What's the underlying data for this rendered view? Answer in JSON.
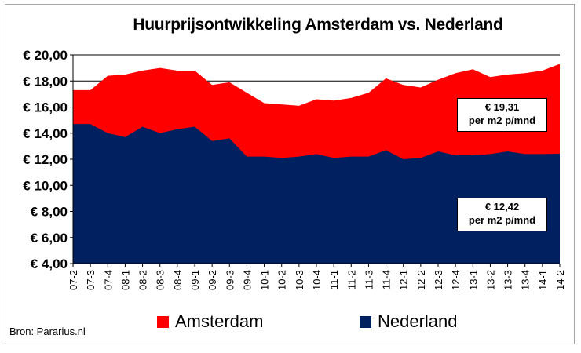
{
  "chart_data": {
    "type": "area",
    "title": "Huurprijsontwikkeling Amsterdam vs. Nederland",
    "x": [
      "07-2",
      "07-3",
      "07-4",
      "08-1",
      "08-2",
      "08-3",
      "08-4",
      "09-1",
      "09-2",
      "09-3",
      "09-4",
      "10-1",
      "10-2",
      "10-3",
      "10-4",
      "11-1",
      "11-2",
      "11-3",
      "11-4",
      "12-1",
      "12-2",
      "12-3",
      "12-4",
      "13-1",
      "13-2",
      "13-3",
      "13-4",
      "14-1",
      "14-2"
    ],
    "series": [
      {
        "name": "Amsterdam",
        "color": "#ff0000",
        "values": [
          17.3,
          17.3,
          18.4,
          18.5,
          18.8,
          19.0,
          18.8,
          18.8,
          17.7,
          17.9,
          17.1,
          16.3,
          16.2,
          16.1,
          16.6,
          16.5,
          16.7,
          17.1,
          18.2,
          17.7,
          17.5,
          18.1,
          18.6,
          18.9,
          18.3,
          18.5,
          18.6,
          18.8,
          19.31
        ]
      },
      {
        "name": "Nederland",
        "color": "#002060",
        "values": [
          14.7,
          14.7,
          14.0,
          13.7,
          14.5,
          14.0,
          14.3,
          14.5,
          13.4,
          13.6,
          12.2,
          12.2,
          12.1,
          12.2,
          12.4,
          12.1,
          12.2,
          12.2,
          12.7,
          12.0,
          12.1,
          12.6,
          12.3,
          12.3,
          12.4,
          12.6,
          12.4,
          12.4,
          12.42
        ]
      }
    ],
    "ylim": [
      4,
      20
    ],
    "y_ticks": [
      "€ 4,00",
      "€ 6,00",
      "€ 8,00",
      "€ 10,00",
      "€ 12,00",
      "€ 14,00",
      "€ 16,00",
      "€ 18,00",
      "€ 20,00"
    ],
    "grid": true,
    "legend": "bottom",
    "annotations": [
      {
        "series": "Amsterdam",
        "line1": "€ 19,31",
        "line2": "per m2 p/mnd"
      },
      {
        "series": "Nederland",
        "line1": "€ 12,42",
        "line2": "per m2 p/mnd"
      }
    ],
    "source": "Bron: Pararius.nl"
  }
}
